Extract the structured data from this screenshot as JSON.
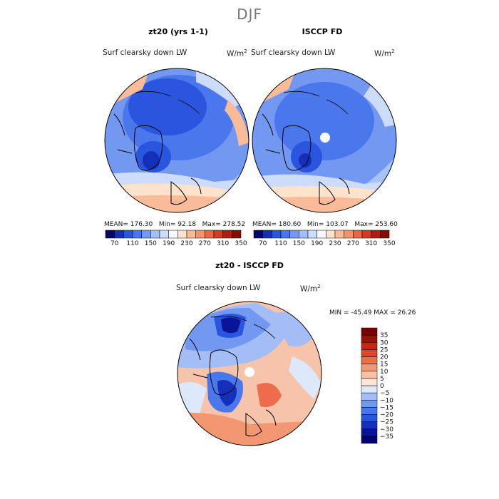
{
  "title": "DJF",
  "panels": [
    {
      "title": "zt20 (yrs 1-1)",
      "variable": "Surf clearsky down LW",
      "units": "W/m",
      "stats": {
        "mean": "176.30",
        "min": "92.18",
        "max": "278.52"
      }
    },
    {
      "title": "ISCCP FD",
      "variable": "Surf clearsky down LW",
      "units": "W/m",
      "stats": {
        "mean": "180.60",
        "min": "103.07",
        "max": "253.60"
      }
    },
    {
      "title": "zt20 - ISCCP FD",
      "variable": "Surf clearsky down LW",
      "units": "W/m",
      "stats_line": "MIN = -45.49 MAX =  26.26"
    }
  ],
  "units_exponent": "2",
  "labels": {
    "mean": "MEAN=",
    "min": "Min=",
    "max": "Max="
  },
  "chart_data": [
    {
      "type": "heatmap",
      "title": "zt20 (yrs 1-1)",
      "projection": "north-polar-stereographic",
      "colorbar": {
        "orientation": "horizontal",
        "levels": [
          70,
          110,
          150,
          190,
          230,
          270,
          310,
          350
        ],
        "colors": [
          "#08086b",
          "#1530b8",
          "#2a55de",
          "#4a78ec",
          "#7398f1",
          "#a3bdf6",
          "#cddcfa",
          "#f6f8ff",
          "#fde2cc",
          "#f9bb98",
          "#f4916a",
          "#ea6445",
          "#d43b22",
          "#b01d10",
          "#800f08"
        ]
      }
    },
    {
      "type": "heatmap",
      "title": "ISCCP FD",
      "projection": "north-polar-stereographic",
      "colorbar": {
        "orientation": "horizontal",
        "levels": [
          70,
          110,
          150,
          190,
          230,
          270,
          310,
          350
        ]
      }
    },
    {
      "type": "heatmap",
      "title": "zt20 - ISCCP FD",
      "projection": "north-polar-stereographic",
      "colorbar": {
        "orientation": "vertical",
        "levels": [
          -35,
          -30,
          -25,
          -20,
          -15,
          -10,
          -5,
          0,
          5,
          10,
          15,
          20,
          25,
          30,
          35
        ],
        "tick_labels": [
          "−35",
          "−30",
          "−25",
          "−20",
          "−15",
          "−10",
          "−5",
          "0",
          "5",
          "10",
          "15",
          "20",
          "25",
          "30",
          "35"
        ],
        "colors": [
          "#000070",
          "#0a1496",
          "#1530b8",
          "#2a55de",
          "#4a78ec",
          "#7398f1",
          "#a3bdf6",
          "#dde8fb",
          "#fde6d6",
          "#f8bfa2",
          "#f39672",
          "#ec6c4b",
          "#df4628",
          "#c42612",
          "#9c1008",
          "#760404"
        ]
      }
    }
  ]
}
